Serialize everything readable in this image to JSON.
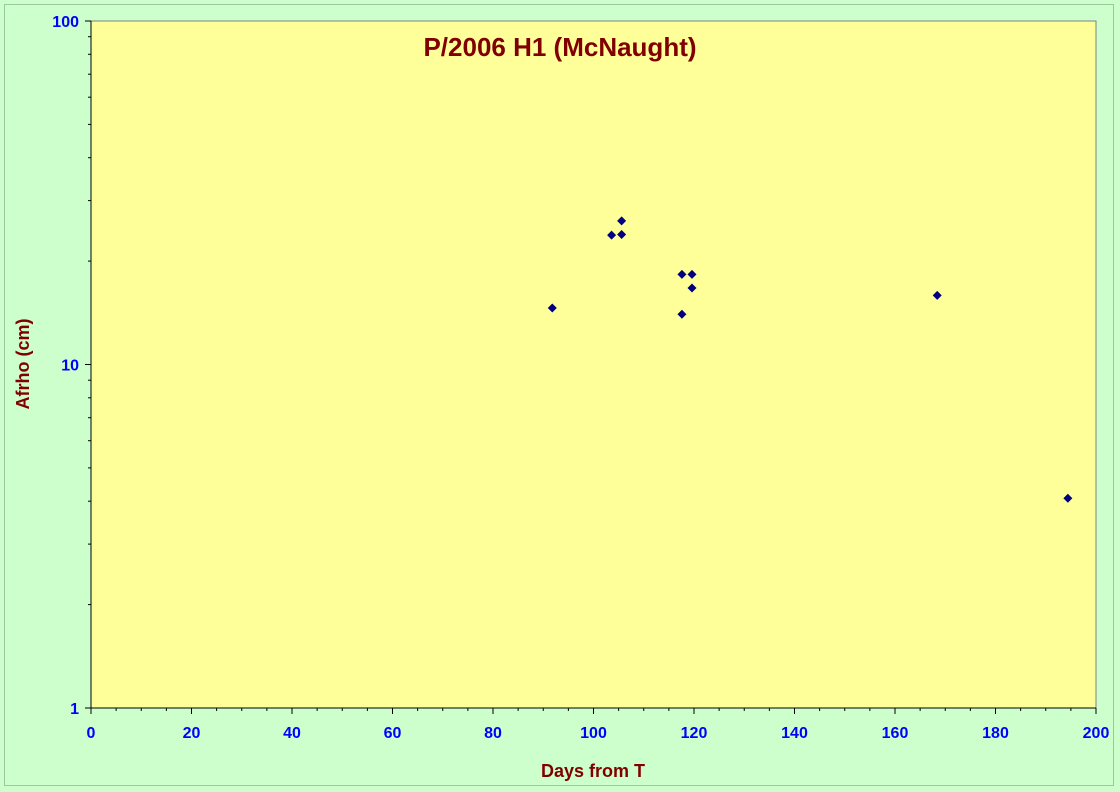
{
  "chart_data": {
    "type": "scatter",
    "title": "P/2006 H1 (McNaught)",
    "xlabel": "Days from T",
    "ylabel": "Afrho (cm)",
    "xlim": [
      0,
      200
    ],
    "ylim": [
      1,
      100
    ],
    "y_scale": "log",
    "x_ticks": [
      0,
      20,
      40,
      60,
      80,
      100,
      120,
      140,
      160,
      180,
      200
    ],
    "x_tick_labels": [
      "0",
      "20",
      "40",
      "60",
      "80",
      "100",
      "120",
      "140",
      "160",
      "180",
      "200"
    ],
    "y_ticks": [
      1,
      10,
      100
    ],
    "y_tick_labels": [
      "1",
      "10",
      "100"
    ],
    "grid": false,
    "legend": "none",
    "series": [
      {
        "marker": "diamond",
        "x": [
          91.8,
          103.6,
          105.6,
          105.6,
          117.6,
          119.6,
          119.6,
          117.6,
          168.4,
          194.4
        ],
        "y": [
          14.6,
          23.8,
          26.2,
          23.9,
          18.3,
          18.3,
          16.7,
          14.0,
          15.9,
          4.08
        ]
      }
    ],
    "colors": {
      "page_background": "#ccffcc",
      "plot_background": "#ffff99",
      "marker": "#000080",
      "title_text": "#800000",
      "axis_title_text": "#800000",
      "tick_label_text": "#0000ff",
      "axis_line": "#000000"
    }
  }
}
